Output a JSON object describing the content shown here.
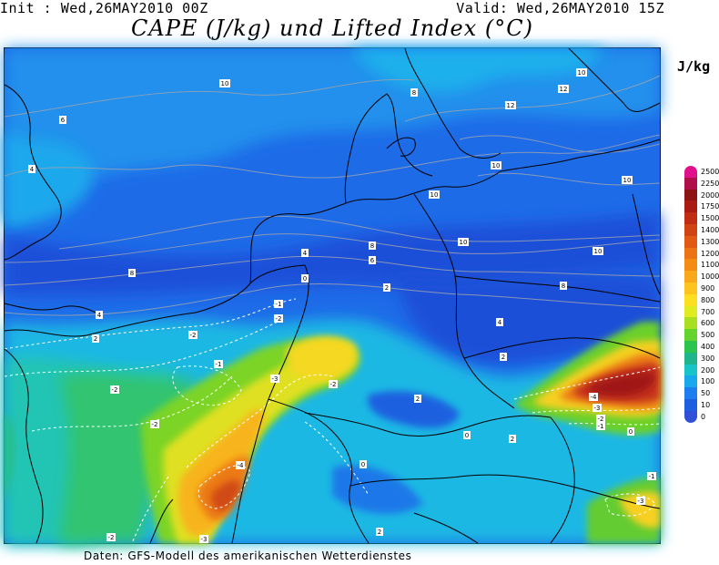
{
  "header": {
    "init": "Init : Wed,26MAY2010 00Z",
    "valid": "Valid: Wed,26MAY2010 15Z",
    "title": "CAPE (J/kg) und Lifted Index (°C)"
  },
  "unit_label": "J/kg",
  "legend": {
    "unit": "J/kg",
    "levels": [
      "2500",
      "2250",
      "2000",
      "1750",
      "1500",
      "1400",
      "1300",
      "1200",
      "1100",
      "1000",
      "900",
      "800",
      "700",
      "600",
      "500",
      "400",
      "300",
      "200",
      "100",
      "50",
      "10",
      "0"
    ],
    "colors": [
      "#e0108a",
      "#b0104a",
      "#8c1414",
      "#a81c14",
      "#c02c14",
      "#d04414",
      "#e05a14",
      "#ec7414",
      "#f48c14",
      "#f8a818",
      "#fcc41c",
      "#fce020",
      "#e0ec20",
      "#a8e020",
      "#64d42c",
      "#2cc44c",
      "#20b48c",
      "#18c4c8",
      "#18a8ec",
      "#1e7ef0",
      "#1e5fe0",
      "#3050d8"
    ]
  },
  "map": {
    "contour_labels": [
      "10",
      "8",
      "6",
      "4",
      "12",
      "10",
      "10",
      "10",
      "8",
      "8",
      "6",
      "4",
      "2",
      "0",
      "-1",
      "-2",
      "-2",
      "-1",
      "-3",
      "-2",
      "-2",
      "-2",
      "-4",
      "2",
      "2",
      "4",
      "2",
      "0",
      "-4",
      "-3",
      "-2",
      "-1",
      "0",
      "-1",
      "-3",
      "2",
      "0",
      "2",
      "-2",
      "-3",
      "8",
      "10",
      "12",
      "10",
      "4",
      "10"
    ]
  },
  "footer": "Daten: GFS-Modell des amerikanischen Wetterdienstes"
}
